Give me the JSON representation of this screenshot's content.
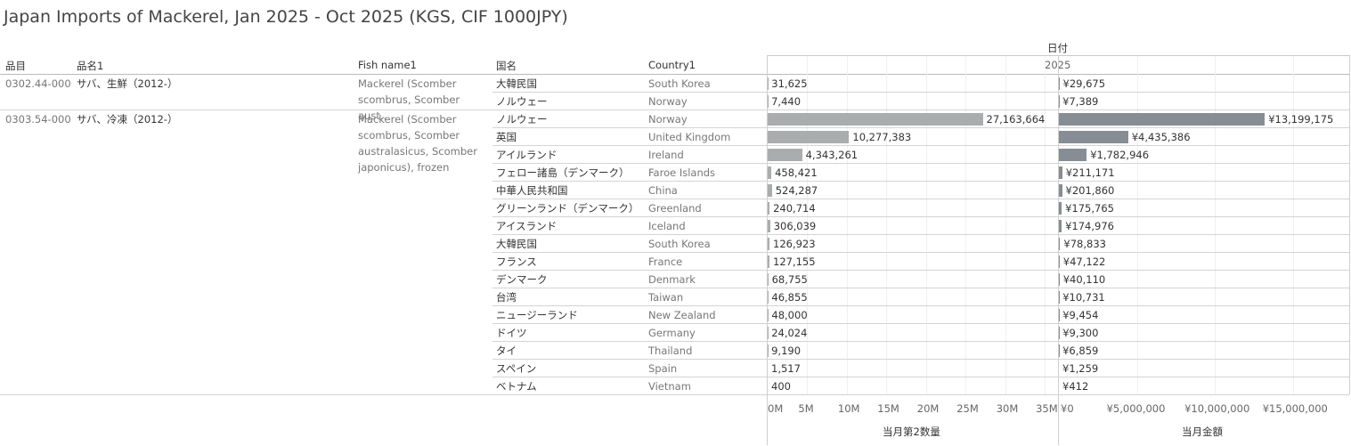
{
  "title": "Japan Imports of Mackerel, Jan 2025 - Oct 2025 (KGS, CIF 1000JPY)",
  "headers": {
    "hs": "品目",
    "name_jp": "品名1",
    "fish_name": "Fish name1",
    "country_jp": "国名",
    "country_en": "Country1",
    "date": "日付",
    "year": "2025"
  },
  "groups": [
    {
      "hs": "0302.44-000",
      "name_jp": "サバ、生鮮（2012-）",
      "fish_name": "Mackerel (Scomber scombrus, Scomber aust.."
    },
    {
      "hs": "0303.54-000",
      "name_jp": "サバ、冷凍（2012-）",
      "fish_name": "Mackerel (Scomber scombrus, Scomber australasicus, Scomber japonicus), frozen"
    }
  ],
  "rows": [
    {
      "group": 0,
      "country_jp": "大韓民国",
      "country_en": "South Korea",
      "qty_label": "31,625",
      "val_label": "¥29,675"
    },
    {
      "group": 0,
      "country_jp": "ノルウェー",
      "country_en": "Norway",
      "qty_label": "7,440",
      "val_label": "¥7,389"
    },
    {
      "group": 1,
      "country_jp": "ノルウェー",
      "country_en": "Norway",
      "qty_label": "27,163,664",
      "val_label": "¥13,199,175"
    },
    {
      "group": 1,
      "country_jp": "英国",
      "country_en": "United Kingdom",
      "qty_label": "10,277,383",
      "val_label": "¥4,435,386"
    },
    {
      "group": 1,
      "country_jp": "アイルランド",
      "country_en": "Ireland",
      "qty_label": "4,343,261",
      "val_label": "¥1,782,946"
    },
    {
      "group": 1,
      "country_jp": "フェロー諸島（デンマーク）",
      "country_en": "Faroe Islands",
      "qty_label": "458,421",
      "val_label": "¥211,171"
    },
    {
      "group": 1,
      "country_jp": "中華人民共和国",
      "country_en": "China",
      "qty_label": "524,287",
      "val_label": "¥201,860"
    },
    {
      "group": 1,
      "country_jp": "グリーンランド（デンマーク）",
      "country_en": "Greenland",
      "qty_label": "240,714",
      "val_label": "¥175,765"
    },
    {
      "group": 1,
      "country_jp": "アイスランド",
      "country_en": "Iceland",
      "qty_label": "306,039",
      "val_label": "¥174,976"
    },
    {
      "group": 1,
      "country_jp": "大韓民国",
      "country_en": "South Korea",
      "qty_label": "126,923",
      "val_label": "¥78,833"
    },
    {
      "group": 1,
      "country_jp": "フランス",
      "country_en": "France",
      "qty_label": "127,155",
      "val_label": "¥47,122"
    },
    {
      "group": 1,
      "country_jp": "デンマーク",
      "country_en": "Denmark",
      "qty_label": "68,755",
      "val_label": "¥40,110"
    },
    {
      "group": 1,
      "country_jp": "台湾",
      "country_en": "Taiwan",
      "qty_label": "46,855",
      "val_label": "¥10,731"
    },
    {
      "group": 1,
      "country_jp": "ニュージーランド",
      "country_en": "New Zealand",
      "qty_label": "48,000",
      "val_label": "¥9,454"
    },
    {
      "group": 1,
      "country_jp": "ドイツ",
      "country_en": "Germany",
      "qty_label": "24,024",
      "val_label": "¥9,300"
    },
    {
      "group": 1,
      "country_jp": "タイ",
      "country_en": "Thailand",
      "qty_label": "9,190",
      "val_label": "¥6,859"
    },
    {
      "group": 1,
      "country_jp": "スペイン",
      "country_en": "Spain",
      "qty_label": "1,517",
      "val_label": "¥1,259"
    },
    {
      "group": 1,
      "country_jp": "ベトナム",
      "country_en": "Vietnam",
      "qty_label": "400",
      "val_label": "¥412"
    }
  ],
  "chart_data": {
    "type": "bar",
    "orientation": "horizontal",
    "categories": [
      "South Korea",
      "Norway",
      "Norway",
      "United Kingdom",
      "Ireland",
      "Faroe Islands",
      "China",
      "Greenland",
      "Iceland",
      "South Korea",
      "France",
      "Denmark",
      "Taiwan",
      "New Zealand",
      "Germany",
      "Thailand",
      "Spain",
      "Vietnam"
    ],
    "series": [
      {
        "name": "当月第2数量",
        "values": [
          31625,
          7440,
          27163664,
          10277383,
          4343261,
          458421,
          524287,
          240714,
          306039,
          126923,
          127155,
          68755,
          46855,
          48000,
          24024,
          9190,
          1517,
          400
        ],
        "color": "#a9adad"
      },
      {
        "name": "当月金額",
        "values": [
          29675,
          7389,
          13199175,
          4435386,
          1782946,
          211171,
          201860,
          175765,
          174976,
          78833,
          47122,
          40110,
          10731,
          9454,
          9300,
          6859,
          1259,
          412
        ],
        "color": "#868d94"
      }
    ],
    "axes": [
      {
        "xlabel": "当月第2数量",
        "xlim": [
          0,
          36000000
        ],
        "ticks": [
          0,
          5000000,
          10000000,
          15000000,
          20000000,
          25000000,
          30000000,
          35000000
        ],
        "tick_labels": [
          "0M",
          "5M",
          "10M",
          "15M",
          "20M",
          "25M",
          "30M",
          "35M"
        ]
      },
      {
        "xlabel": "当月金額",
        "xlim": [
          0,
          18500000
        ],
        "ticks": [
          0,
          5000000,
          10000000,
          15000000
        ],
        "tick_labels": [
          "¥0",
          "¥5,000,000",
          "¥10,000,000",
          "¥15,000,000"
        ]
      }
    ],
    "grid": true
  }
}
